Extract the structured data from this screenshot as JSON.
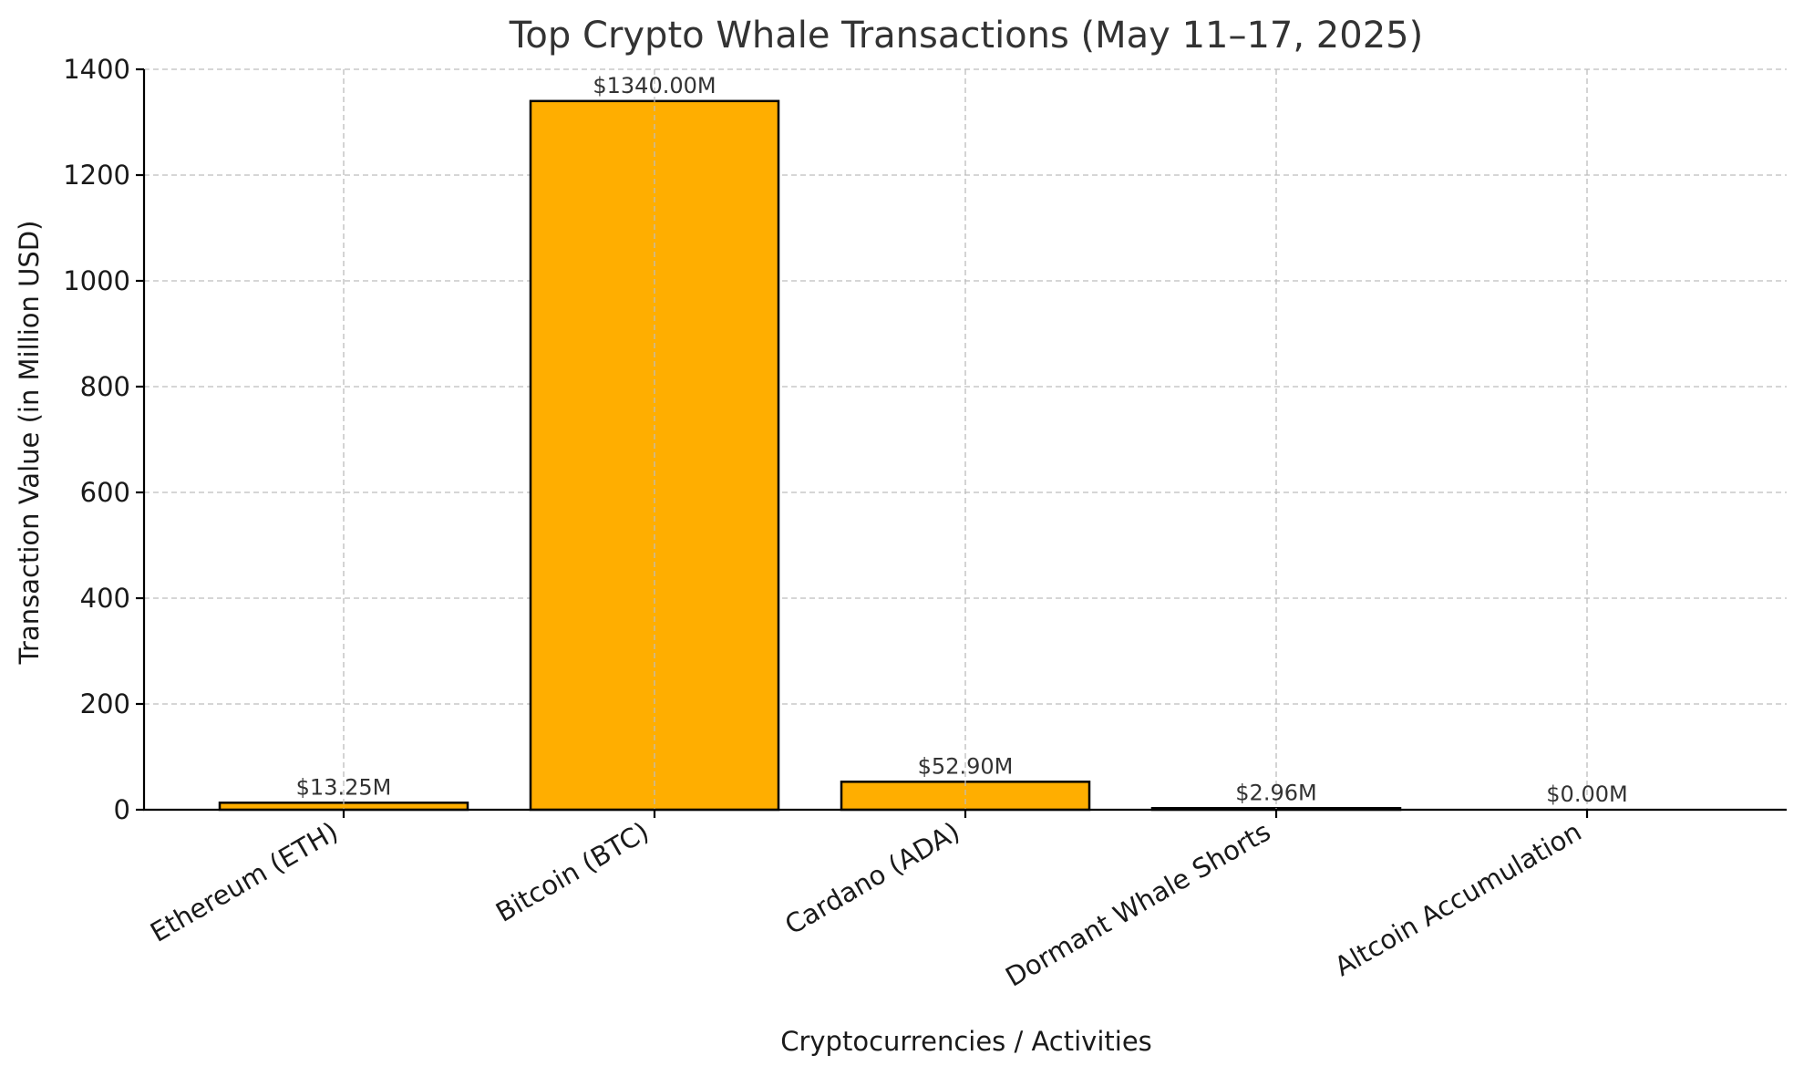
{
  "chart_data": {
    "type": "bar",
    "title": "Top Crypto Whale Transactions (May 11–17, 2025)",
    "xlabel": "Cryptocurrencies / Activities",
    "ylabel": "Transaction Value (in Million USD)",
    "categories": [
      "Ethereum (ETH)",
      "Bitcoin (BTC)",
      "Cardano (ADA)",
      "Dormant Whale Shorts",
      "Altcoin Accumulation"
    ],
    "values": [
      13.25,
      1340.0,
      52.9,
      2.96,
      0.0
    ],
    "data_labels": [
      "$13.25M",
      "$1340.00M",
      "$52.90M",
      "$2.96M",
      "$0.00M"
    ],
    "yticks": [
      0,
      200,
      400,
      600,
      800,
      1000,
      1200,
      1400
    ],
    "ylim": [
      0,
      1400
    ],
    "grid": true,
    "legend": "none",
    "colors": {
      "bar_fill": "#ffae00",
      "bar_edge": "#000000",
      "grid": "#bdbdbd"
    }
  }
}
